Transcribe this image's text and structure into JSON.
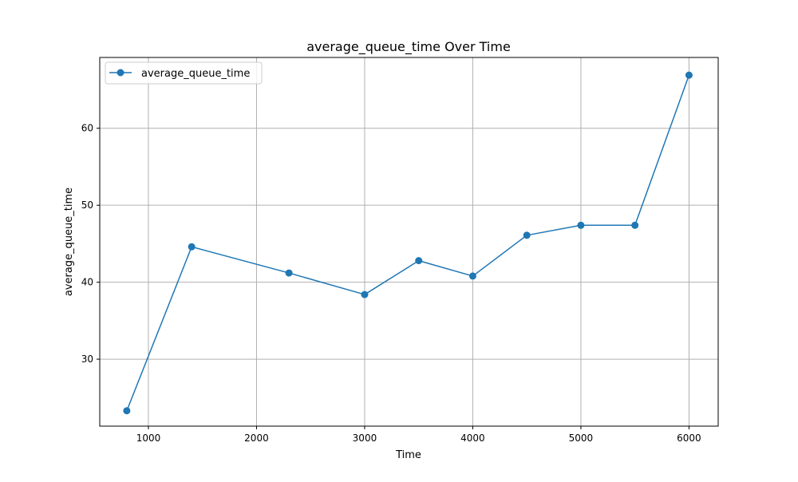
{
  "chart_data": {
    "type": "line",
    "title": "average_queue_time Over Time",
    "xlabel": "Time",
    "ylabel": "average_queue_time",
    "xlim": [
      550,
      6270
    ],
    "ylim": [
      21.3,
      69.2
    ],
    "x_ticks": [
      1000,
      2000,
      3000,
      4000,
      5000,
      6000
    ],
    "y_ticks": [
      30,
      40,
      50,
      60
    ],
    "grid": true,
    "legend_position": "top-left",
    "series": [
      {
        "name": "average_queue_time",
        "color": "#1f77b4",
        "marker": "circle",
        "x": [
          800,
          1400,
          2300,
          3000,
          3500,
          4000,
          4500,
          5000,
          5500,
          6000
        ],
        "y": [
          23.3,
          44.6,
          41.2,
          38.4,
          42.8,
          40.8,
          46.1,
          47.4,
          47.4,
          66.9
        ]
      }
    ]
  }
}
